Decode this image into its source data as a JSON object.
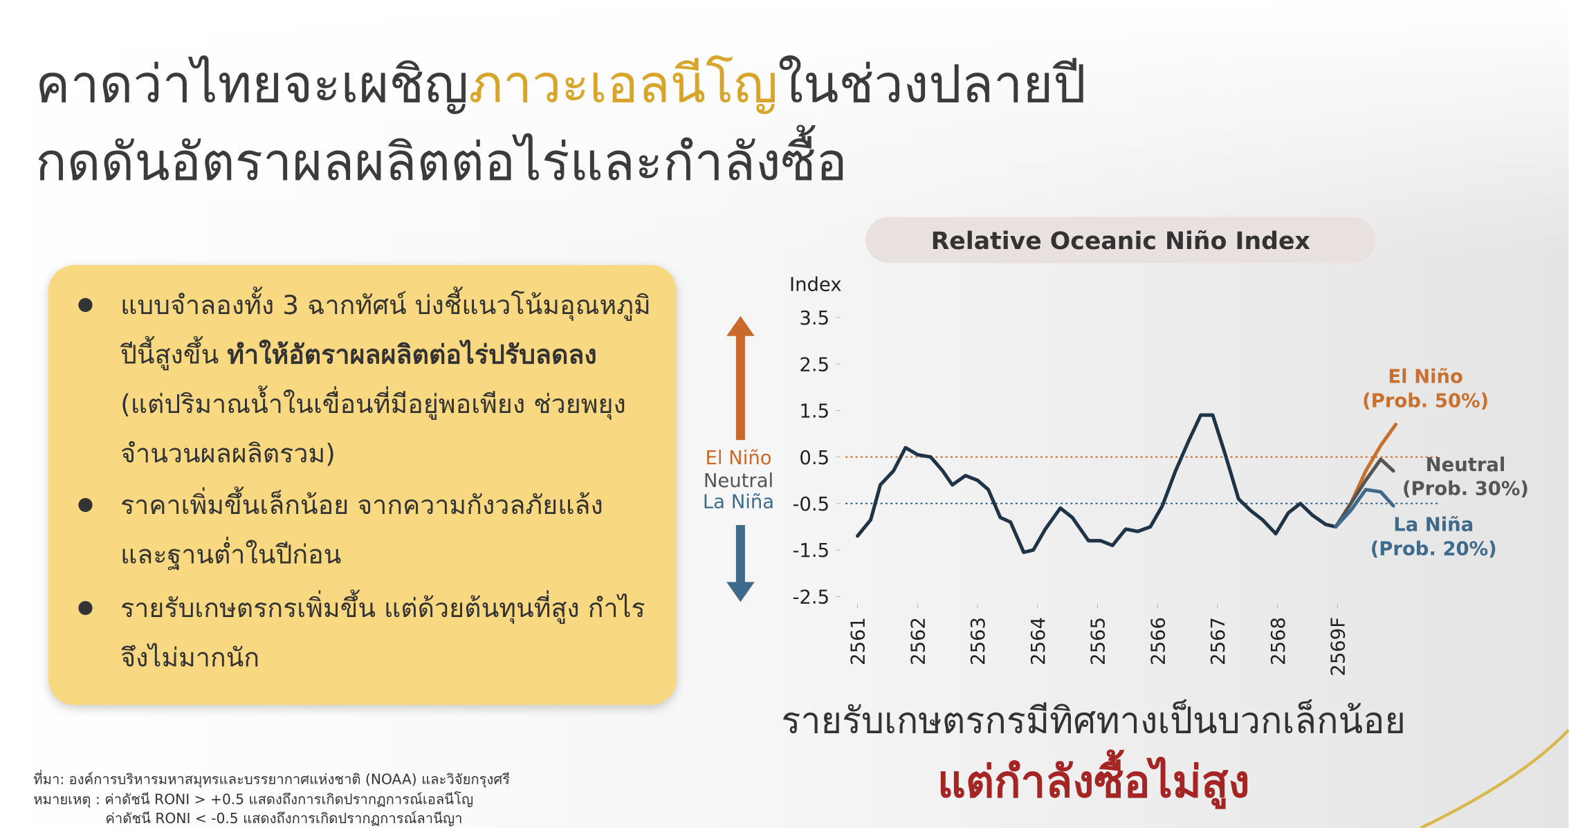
{
  "title": {
    "line1_start": "คาดว่าไทยจะเผชิญ",
    "line1_highlight": "ภาวะเอลนีโญ",
    "line1_end": "ในช่วงปลายปี",
    "line2": "กดดันอัตราผลผลิตต่อไร่และกำลังซื้อ"
  },
  "bullets": [
    {
      "lines": [
        [
          {
            "text": "แบบจำลองทั้ง 3 ฉากทัศน์ บ่งชี้แนวโน้มอุณหภูมิ"
          }
        ],
        [
          {
            "text": "ปีนี้สูงขึ้น "
          },
          {
            "text": "ทำให้อัตราผลผลิตต่อไร่ปรับลดลง",
            "bold": true
          }
        ],
        [
          {
            "text": "(แต่ปริมาณน้ำในเขื่อนที่มีอยู่พอเพียง ช่วยพยุง"
          }
        ],
        [
          {
            "text": "จำนวนผลผลิตรวม)"
          }
        ]
      ]
    },
    {
      "lines": [
        [
          {
            "text": "ราคาเพิ่มขึ้นเล็กน้อย จากความกังวลภัยแล้ง"
          }
        ],
        [
          {
            "text": "และฐานต่ำในปีก่อน"
          }
        ]
      ]
    },
    {
      "lines": [
        [
          {
            "text": "รายรับเกษตรกรเพิ่มขึ้น แต่ด้วยต้นทุนที่สูง กำไร"
          }
        ],
        [
          {
            "text": "จึงไม่มากนัก"
          }
        ]
      ]
    }
  ],
  "conclusion": [
    "รายรับเกษตรกรมีทิศทางเป็นบวกเล็กน้อย",
    "แต่กำลังซื้อไม่สูง"
  ],
  "footnotes": [
    "ที่มา: องค์การบริหารมหาสมุทรและบรรยากาศแห่งชาติ (NOAA) และวิจัยกรุงศรี",
    "หมายเหตุ : ค่าดัชนี RONI > +0.5 แสดงถึงการเกิดปรากฏการณ์เอลนีโญ",
    "ค่าดัชนี RONI < -0.5  แสดงถึงการเกิดปรากฏการณ์ลานีญา"
  ],
  "chart_data": {
    "type": "line",
    "title": "Relative Oceanic Niño Index",
    "ylabel": "Index",
    "regime_labels": [
      "El Niño",
      "Neutral",
      "La Niña"
    ],
    "regime_colors": [
      "#c96a2c",
      "#555555",
      "#3e6a8c"
    ],
    "xlim": [
      2560.8,
      2570.2
    ],
    "xticks": [
      2561,
      2562,
      2563,
      2564,
      2565,
      2566,
      2567,
      2568,
      {
        "value": 2569,
        "label": "2569F"
      }
    ],
    "ylim": [
      -2.8,
      3.8
    ],
    "yticks": [
      3.5,
      2.5,
      1.5,
      0.5,
      -0.5,
      -1.5,
      -2.5
    ],
    "thresholds": [
      {
        "value": 0.5,
        "color": "#c96a2c"
      },
      {
        "value": -0.5,
        "color": "#3e6a8c"
      }
    ],
    "series": [
      {
        "color": "#1f3447",
        "x": [
          2561.0,
          2561.22,
          2561.38,
          2561.6,
          2561.8,
          2562.0,
          2562.22,
          2562.42,
          2562.58,
          2562.8,
          2563.0,
          2563.18,
          2563.38,
          2563.55,
          2563.77,
          2563.93,
          2564.13,
          2564.38,
          2564.58,
          2564.85,
          2565.05,
          2565.25,
          2565.47,
          2565.67,
          2565.88,
          2566.08,
          2566.3,
          2566.52,
          2566.72,
          2566.92,
          2567.13,
          2567.35,
          2567.55,
          2567.75,
          2567.97,
          2568.18,
          2568.38,
          2568.58,
          2568.8,
          2568.97
        ],
        "values": [
          -1.2,
          -0.85,
          -0.1,
          0.2,
          0.7,
          0.55,
          0.5,
          0.2,
          -0.1,
          0.1,
          0.0,
          -0.2,
          -0.8,
          -0.9,
          -1.55,
          -1.5,
          -1.05,
          -0.6,
          -0.8,
          -1.3,
          -1.3,
          -1.4,
          -1.05,
          -1.1,
          -1.0,
          -0.55,
          0.2,
          0.85,
          1.4,
          1.4,
          0.55,
          -0.4,
          -0.65,
          -0.85,
          -1.15,
          -0.7,
          -0.5,
          -0.75,
          -0.95,
          -1.0
        ]
      },
      {
        "name": "El Niño",
        "probability_label": "(Prob. 50%)",
        "color": "#c8702e",
        "x": [
          2568.97,
          2569.22,
          2569.47,
          2569.72,
          2569.97
        ],
        "values": [
          -1.0,
          -0.5,
          0.2,
          0.75,
          1.2
        ]
      },
      {
        "name": "Neutral",
        "probability_label": "(Prob. 30%)",
        "color": "#555555",
        "x": [
          2568.97,
          2569.22,
          2569.47,
          2569.72,
          2569.93
        ],
        "values": [
          -1.0,
          -0.5,
          0.0,
          0.45,
          0.2
        ]
      },
      {
        "name": "La Niña",
        "probability_label": "(Prob. 20%)",
        "color": "#3e6a8c",
        "x": [
          2568.97,
          2569.22,
          2569.47,
          2569.72,
          2569.93
        ],
        "values": [
          -1.0,
          -0.65,
          -0.2,
          -0.25,
          -0.55
        ]
      }
    ]
  }
}
